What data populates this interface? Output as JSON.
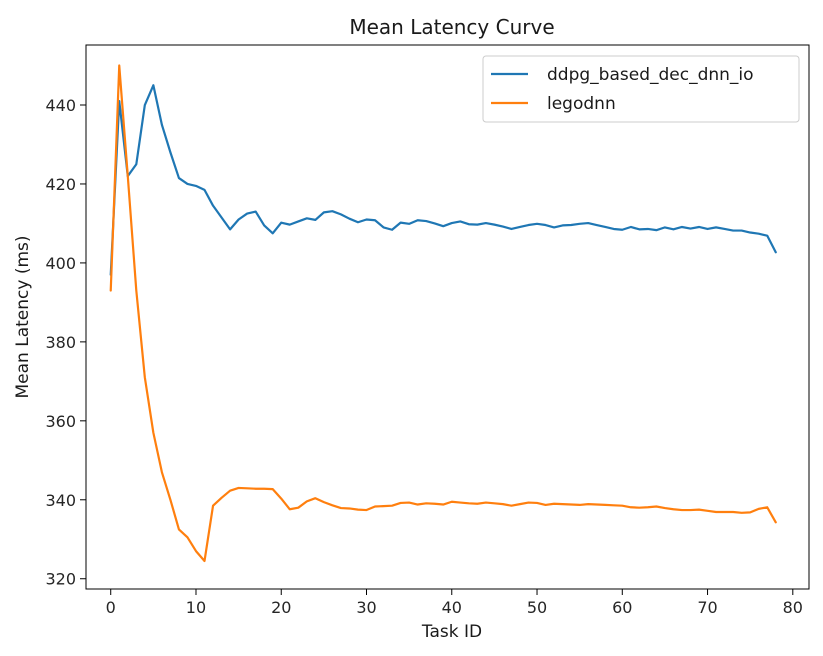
{
  "chart_data": {
    "type": "line",
    "title": "Mean Latency Curve",
    "xlabel": "Task ID",
    "ylabel": "Mean Latency (ms)",
    "xlim": [
      -2.9,
      81.9
    ],
    "ylim": [
      317.4,
      455.2
    ],
    "xticks": [
      0,
      10,
      20,
      30,
      40,
      50,
      60,
      70,
      80
    ],
    "yticks": [
      320,
      340,
      360,
      380,
      400,
      420,
      440
    ],
    "grid": false,
    "legend_position": "top-right",
    "x": [
      0,
      1,
      2,
      3,
      4,
      5,
      6,
      7,
      8,
      9,
      10,
      11,
      12,
      13,
      14,
      15,
      16,
      17,
      18,
      19,
      20,
      21,
      22,
      23,
      24,
      25,
      26,
      27,
      28,
      29,
      30,
      31,
      32,
      33,
      34,
      35,
      36,
      37,
      38,
      39,
      40,
      41,
      42,
      43,
      44,
      45,
      46,
      47,
      48,
      49,
      50,
      51,
      52,
      53,
      54,
      55,
      56,
      57,
      58,
      59,
      60,
      61,
      62,
      63,
      64,
      65,
      66,
      67,
      68,
      69,
      70,
      71,
      72,
      73,
      74,
      75,
      76,
      77,
      78
    ],
    "series": [
      {
        "name": "ddpg_based_dec_dnn_io",
        "color": "#1f77b4",
        "values": [
          397,
          441,
          422,
          425,
          440,
          445,
          435,
          428,
          421.5,
          420,
          419.5,
          418.5,
          414.5,
          411.5,
          408.5,
          411,
          412.5,
          413,
          409.5,
          407.5,
          410.2,
          409.7,
          410.5,
          411.3,
          410.9,
          412.8,
          413.1,
          412.3,
          411.2,
          410.3,
          411,
          410.8,
          409,
          408.4,
          410.2,
          409.9,
          410.8,
          410.6,
          410,
          409.3,
          410.1,
          410.5,
          409.8,
          409.7,
          410.1,
          409.7,
          409.2,
          408.6,
          409.1,
          409.6,
          409.9,
          409.6,
          409,
          409.5,
          409.6,
          409.9,
          410.1,
          409.6,
          409.1,
          408.6,
          408.4,
          409.1,
          408.5,
          408.6,
          408.3,
          409,
          408.5,
          409.1,
          408.7,
          409.1,
          408.6,
          409,
          408.6,
          408.2,
          408.2,
          407.7,
          407.4,
          406.9,
          402.7
        ]
      },
      {
        "name": "legodnn",
        "color": "#ff7f0e",
        "values": [
          393,
          450,
          422,
          393,
          371,
          357,
          347,
          340,
          332.5,
          330.5,
          327,
          324.5,
          338.5,
          340.5,
          342.3,
          343,
          342.9,
          342.8,
          342.8,
          342.7,
          340.3,
          337.6,
          338,
          339.6,
          340.4,
          339.4,
          338.6,
          337.9,
          337.8,
          337.5,
          337.4,
          338.3,
          338.4,
          338.5,
          339.2,
          339.3,
          338.8,
          339.1,
          339,
          338.8,
          339.5,
          339.3,
          339.1,
          339,
          339.3,
          339.1,
          338.9,
          338.5,
          338.9,
          339.3,
          339.2,
          338.7,
          339,
          338.9,
          338.8,
          338.7,
          338.9,
          338.8,
          338.7,
          338.6,
          338.5,
          338.1,
          338,
          338.1,
          338.3,
          337.9,
          337.6,
          337.4,
          337.4,
          337.5,
          337.2,
          336.9,
          336.9,
          336.9,
          336.7,
          336.8,
          337.7,
          338.1,
          334.3
        ]
      }
    ]
  }
}
